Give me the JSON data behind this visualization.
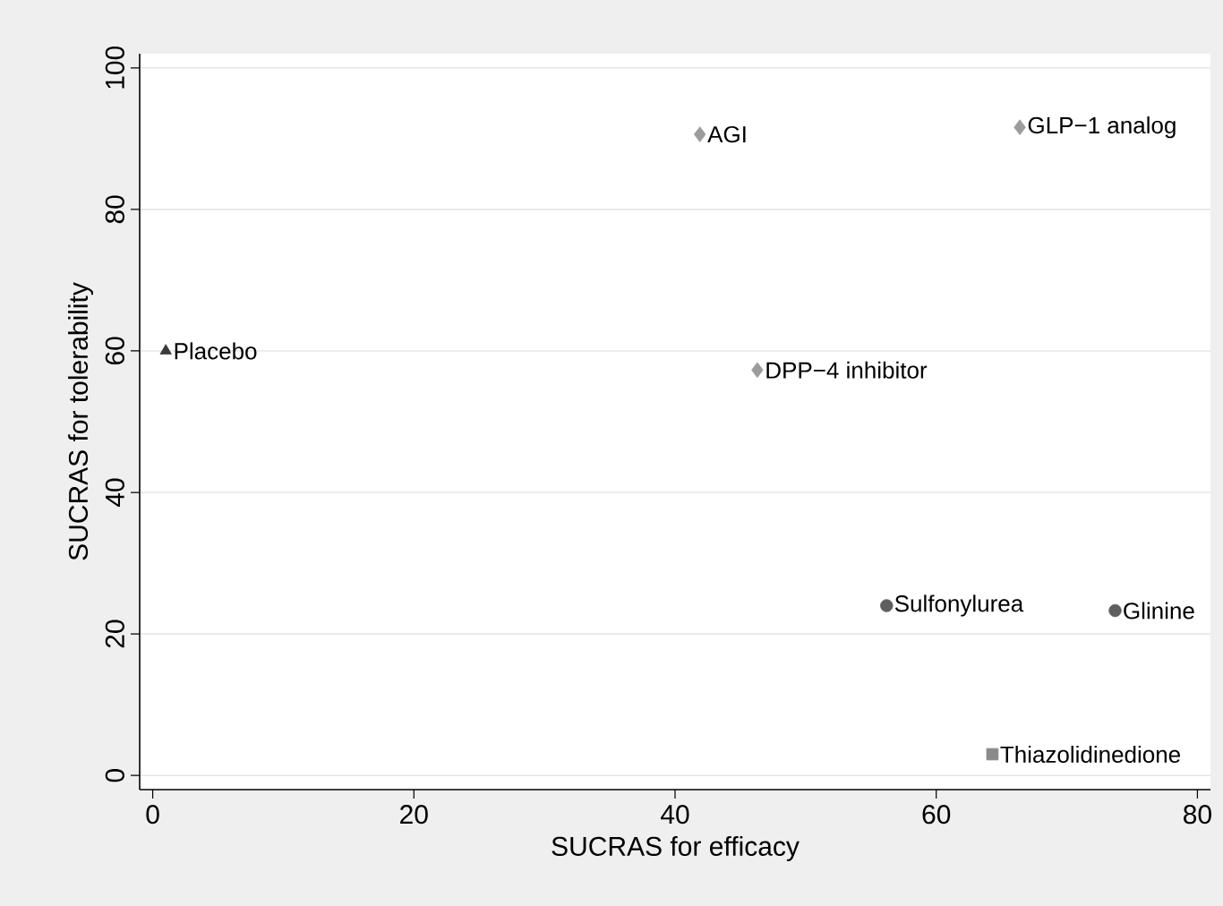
{
  "chart_data": {
    "type": "scatter",
    "xlabel": "SUCRAS for efficacy",
    "ylabel": "SUCRAS for tolerability",
    "xlim": [
      -1,
      81
    ],
    "ylim": [
      -2,
      102
    ],
    "xticks": [
      0,
      20,
      40,
      60,
      80
    ],
    "yticks": [
      0,
      20,
      40,
      60,
      80,
      100
    ],
    "grid": "y",
    "series": [
      {
        "name": "Placebo",
        "color": "#3a3a3a",
        "marker": "triangle",
        "x": [
          1
        ],
        "values": [
          60
        ]
      },
      {
        "name": "AGI",
        "color": "#9c9c9c",
        "marker": "diamond",
        "x": [
          41.9
        ],
        "values": [
          90.6
        ]
      },
      {
        "name": "GLP−1 analog",
        "color": "#9c9c9c",
        "marker": "diamond",
        "x": [
          66.4
        ],
        "values": [
          91.6
        ]
      },
      {
        "name": "DPP−4 inhibitor",
        "color": "#9c9c9c",
        "marker": "diamond",
        "x": [
          46.3
        ],
        "values": [
          57.3
        ]
      },
      {
        "name": "Sulfonylurea",
        "color": "#5e5e5e",
        "marker": "circle",
        "x": [
          56.2
        ],
        "values": [
          24.0
        ]
      },
      {
        "name": "Glinine",
        "color": "#5e5e5e",
        "marker": "circle",
        "x": [
          73.7
        ],
        "values": [
          23.3
        ]
      },
      {
        "name": "Thiazolidinedione",
        "color": "#8a8a8a",
        "marker": "square",
        "x": [
          64.3
        ],
        "values": [
          3.0
        ]
      }
    ]
  }
}
